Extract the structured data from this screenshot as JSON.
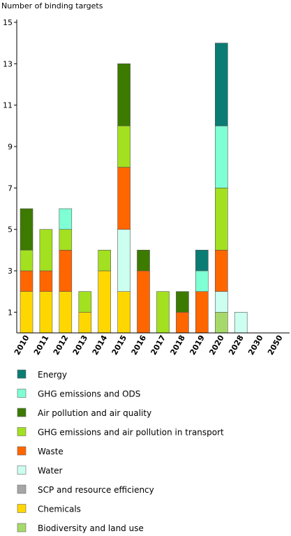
{
  "chart_data": {
    "type": "bar",
    "stacked": true,
    "ylabel": "Number of binding targets",
    "ylim": [
      0,
      15
    ],
    "yticks": [
      1,
      3,
      5,
      7,
      9,
      11,
      13,
      15
    ],
    "grid": false,
    "legend_position": "bottom",
    "categories": [
      "2010",
      "2011",
      "2012",
      "2013",
      "2014",
      "2015",
      "2016",
      "2017",
      "2018",
      "2019",
      "2020",
      "2028",
      "2030",
      "2050"
    ],
    "series": [
      {
        "name": "Biodiversity and land use",
        "color": "#a6d96a",
        "values": [
          0,
          0,
          0,
          0,
          0,
          0,
          0,
          0,
          0,
          0,
          1,
          0,
          0,
          0
        ]
      },
      {
        "name": "Chemicals",
        "color": "#ffd700",
        "values": [
          2,
          2,
          2,
          1,
          3,
          2,
          0,
          0,
          0,
          0,
          0,
          0,
          0,
          0
        ]
      },
      {
        "name": "SCP and resource efficiency",
        "color": "#a6a6a6",
        "values": [
          0,
          0,
          0,
          0,
          0,
          0,
          0,
          0,
          0,
          0,
          0,
          0,
          0,
          0
        ]
      },
      {
        "name": "Water",
        "color": "#ccfff0",
        "values": [
          0,
          0,
          0,
          0,
          0,
          3,
          0,
          0,
          0,
          0,
          1,
          1,
          0,
          0
        ]
      },
      {
        "name": "Waste",
        "color": "#ff6600",
        "values": [
          1,
          1,
          2,
          0,
          0,
          3,
          3,
          0,
          1,
          2,
          2,
          0,
          0,
          0
        ]
      },
      {
        "name": "GHG emissions and air pollution in transport",
        "color": "#a3e01f",
        "values": [
          1,
          2,
          1,
          1,
          1,
          2,
          0,
          2,
          0,
          0,
          3,
          0,
          0,
          0
        ]
      },
      {
        "name": "Air pollution and air quality",
        "color": "#3c7a00",
        "values": [
          2,
          0,
          0,
          0,
          0,
          3,
          1,
          0,
          1,
          0,
          0,
          0,
          0,
          0
        ]
      },
      {
        "name": "GHG emissions and ODS",
        "color": "#7fffd4",
        "values": [
          0,
          0,
          1,
          0,
          0,
          0,
          0,
          0,
          0,
          1,
          3,
          0,
          0,
          0
        ]
      },
      {
        "name": "Energy",
        "color": "#0b7c73",
        "values": [
          0,
          0,
          0,
          0,
          0,
          0,
          0,
          0,
          0,
          1,
          4,
          0,
          0,
          0
        ]
      }
    ],
    "legend_order": [
      "Energy",
      "GHG emissions and ODS",
      "Air pollution and air quality",
      "GHG emissions and air pollution in transport",
      "Waste",
      "Water",
      "SCP and resource efficiency",
      "Chemicals",
      "Biodiversity and land use"
    ]
  }
}
